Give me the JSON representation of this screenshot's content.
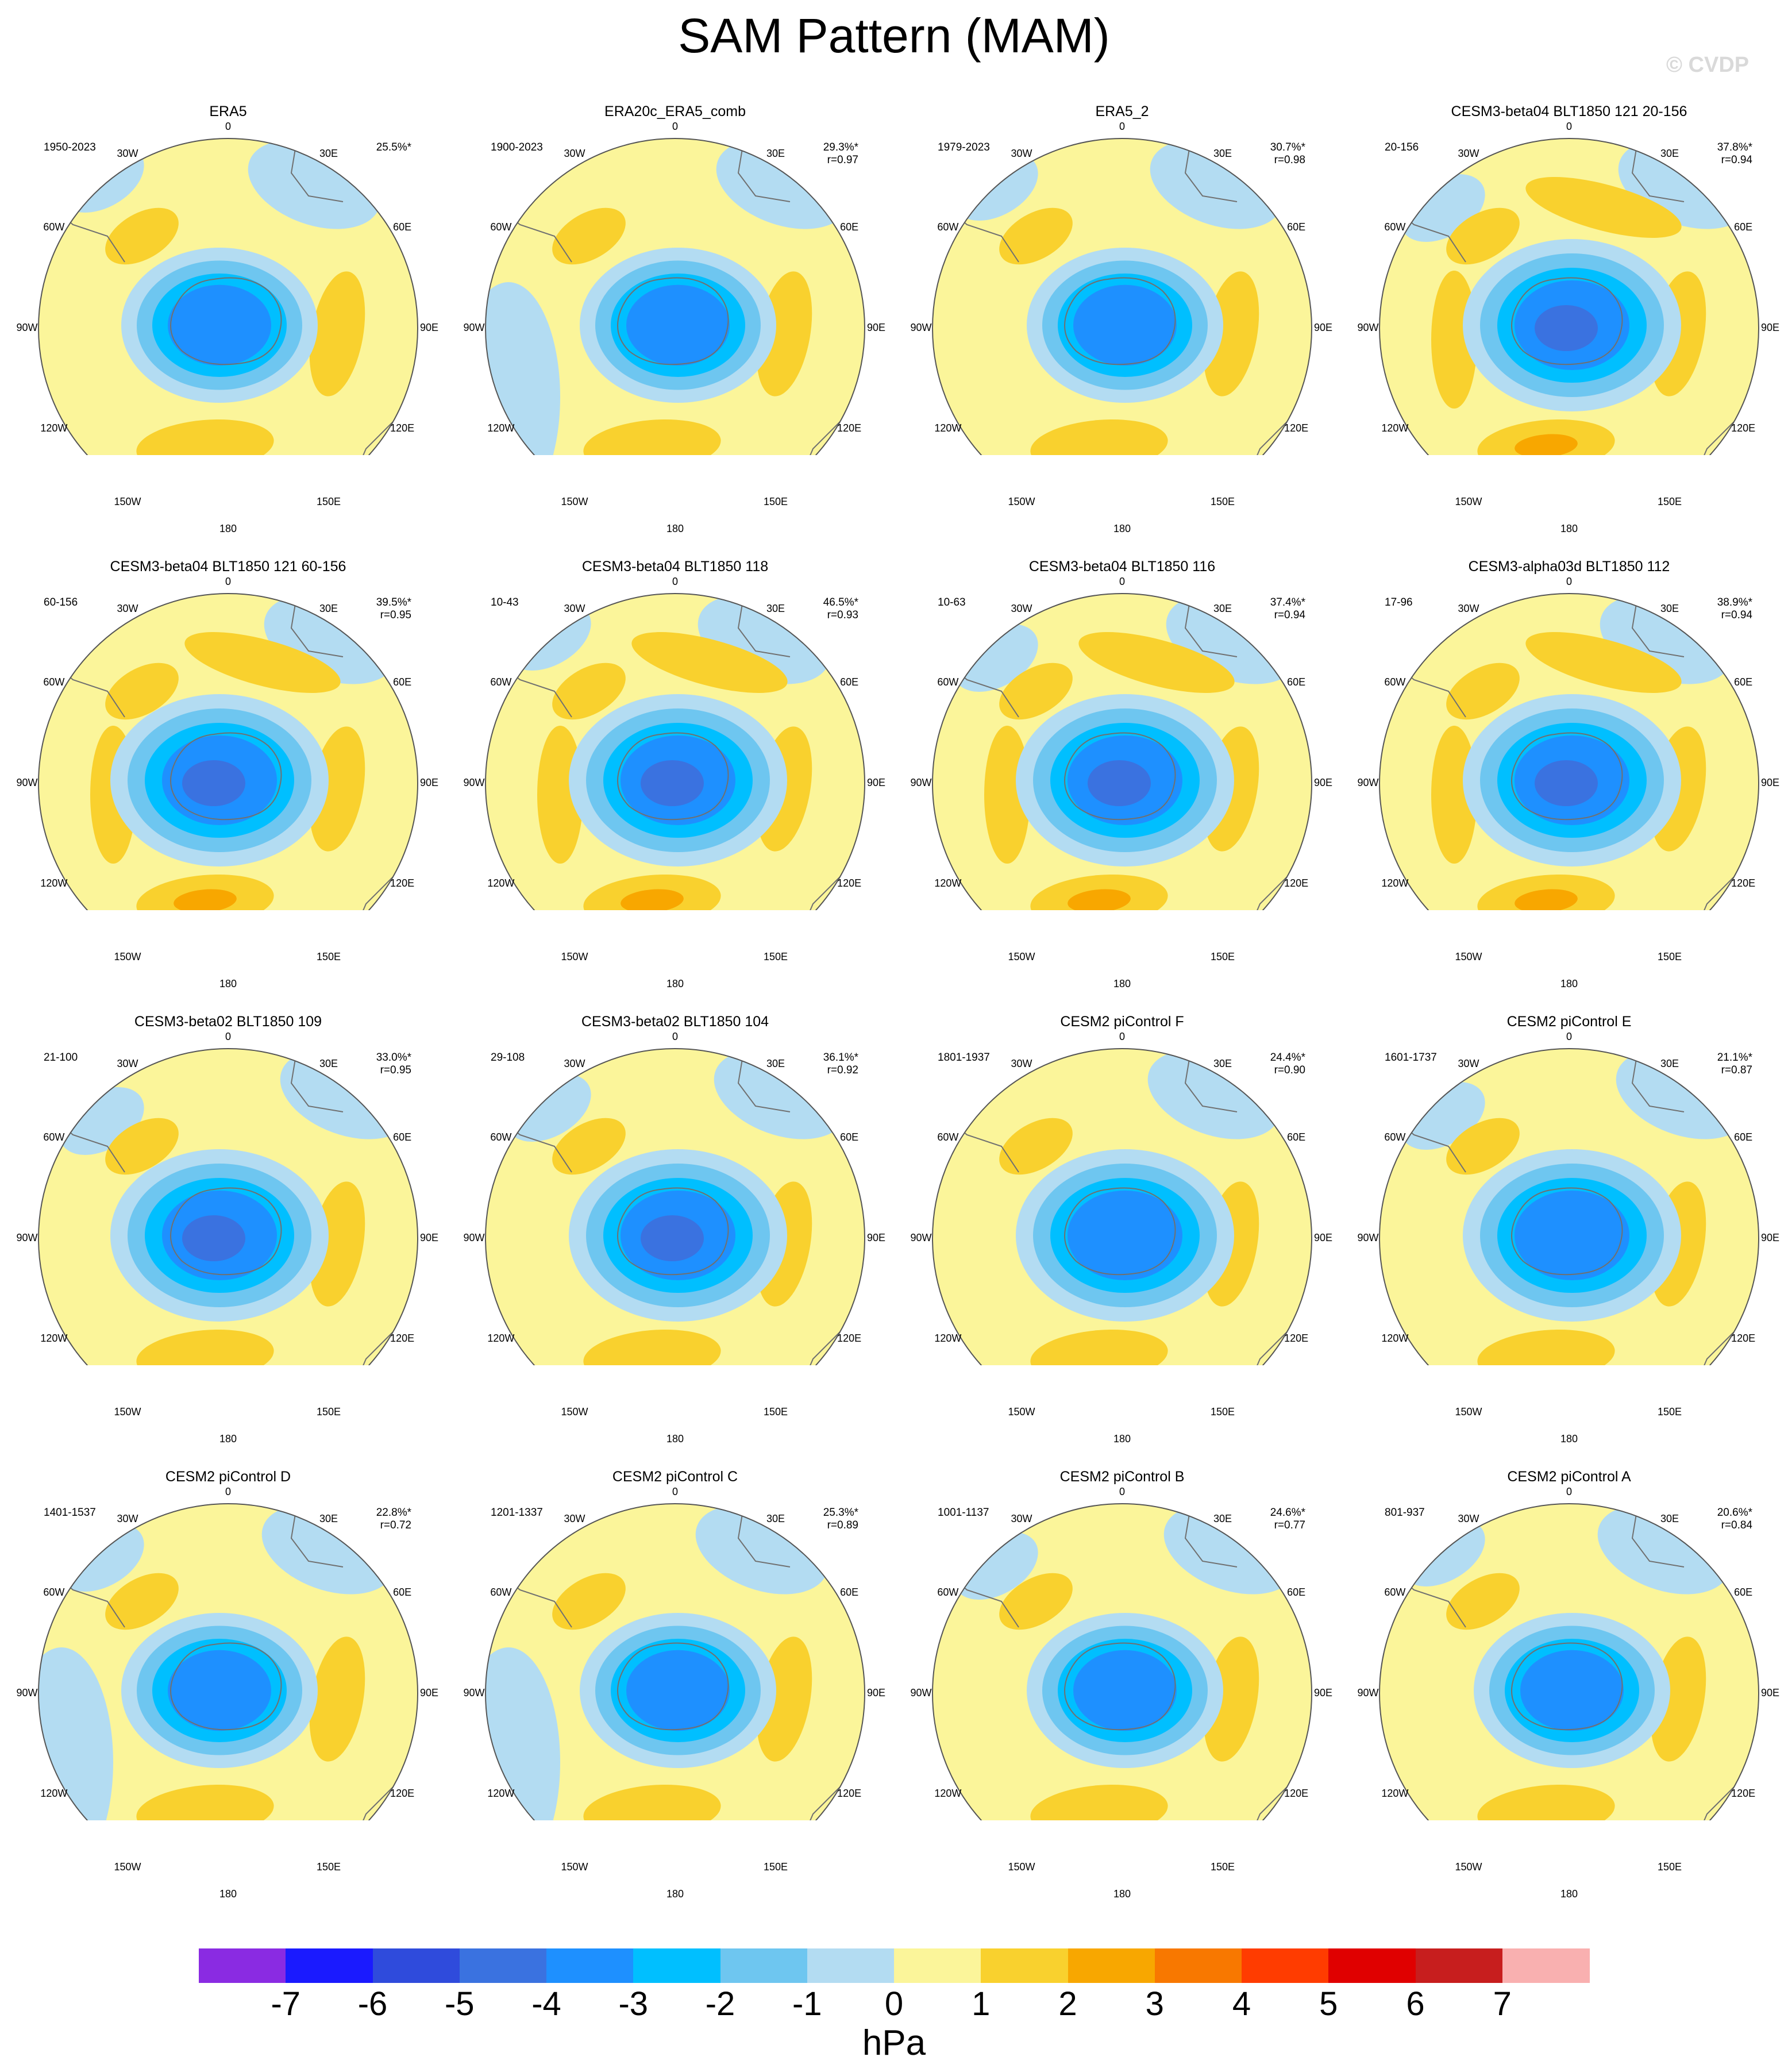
{
  "title": "SAM Pattern (MAM)",
  "watermark": "© CVDP",
  "units": "hPa",
  "lon_labels": [
    "0",
    "30E",
    "60E",
    "90E",
    "120E",
    "150E",
    "180",
    "150W",
    "120W",
    "90W",
    "60W",
    "30W"
  ],
  "colorbar": {
    "ticks": [
      "-7",
      "-6",
      "-5",
      "-4",
      "-3",
      "-2",
      "-1",
      "0",
      "1",
      "2",
      "3",
      "4",
      "5",
      "6",
      "7"
    ],
    "colors": [
      "#8a2be2",
      "#1a1aff",
      "#2f4bdc",
      "#3a72e0",
      "#1e90ff",
      "#00bfff",
      "#6ec6f0",
      "#b3dcf2",
      "#fbf59a",
      "#f9d12e",
      "#f8a700",
      "#f87800",
      "#ff3c00",
      "#e00000",
      "#c71e1e",
      "#f9b0b0"
    ]
  },
  "panels": [
    {
      "title": "ERA5",
      "years": "1950-2023",
      "pct": "25.5%*",
      "r": ""
    },
    {
      "title": "ERA20c_ERA5_comb",
      "years": "1900-2023",
      "pct": "29.3%*",
      "r": "r=0.97"
    },
    {
      "title": "ERA5_2",
      "years": "1979-2023",
      "pct": "30.7%*",
      "r": "r=0.98"
    },
    {
      "title": "CESM3-beta04 BLT1850 121 20-156",
      "years": "20-156",
      "pct": "37.8%*",
      "r": "r=0.94"
    },
    {
      "title": "CESM3-beta04 BLT1850 121 60-156",
      "years": "60-156",
      "pct": "39.5%*",
      "r": "r=0.95"
    },
    {
      "title": "CESM3-beta04 BLT1850 118",
      "years": "10-43",
      "pct": "46.5%*",
      "r": "r=0.93"
    },
    {
      "title": "CESM3-beta04 BLT1850 116",
      "years": "10-63",
      "pct": "37.4%*",
      "r": "r=0.94"
    },
    {
      "title": "CESM3-alpha03d BLT1850 112",
      "years": "17-96",
      "pct": "38.9%*",
      "r": "r=0.94"
    },
    {
      "title": "CESM3-beta02 BLT1850 109",
      "years": "21-100",
      "pct": "33.0%*",
      "r": "r=0.95"
    },
    {
      "title": "CESM3-beta02 BLT1850 104",
      "years": "29-108",
      "pct": "36.1%*",
      "r": "r=0.92"
    },
    {
      "title": "CESM2 piControl F",
      "years": "1801-1937",
      "pct": "24.4%*",
      "r": "r=0.90"
    },
    {
      "title": "CESM2 piControl E",
      "years": "1601-1737",
      "pct": "21.1%*",
      "r": "r=0.87"
    },
    {
      "title": "CESM2 piControl D",
      "years": "1401-1537",
      "pct": "22.8%*",
      "r": "r=0.72"
    },
    {
      "title": "CESM2 piControl C",
      "years": "1201-1337",
      "pct": "25.3%*",
      "r": "r=0.89"
    },
    {
      "title": "CESM2 piControl B",
      "years": "1001-1137",
      "pct": "24.6%*",
      "r": "r=0.77"
    },
    {
      "title": "CESM2 piControl A",
      "years": "801-937",
      "pct": "20.6%*",
      "r": "r=0.84"
    }
  ]
}
